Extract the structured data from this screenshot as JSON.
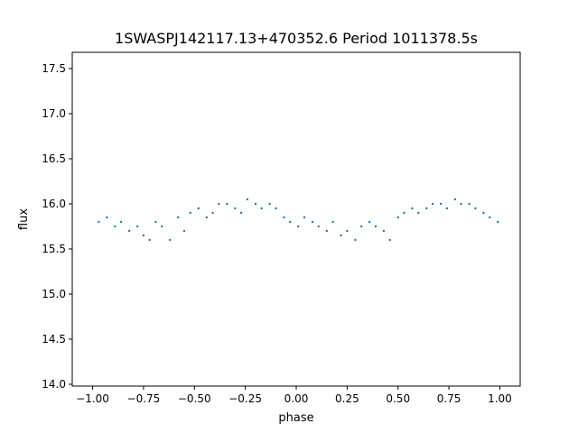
{
  "chart_data": {
    "type": "scatter",
    "title": "1SWASPJ142117.13+470352.6 Period 1011378.5s",
    "xlabel": "phase",
    "ylabel": "flux",
    "xlim": [
      -1.1,
      1.1
    ],
    "ylim": [
      13.98,
      17.68
    ],
    "xticks": [
      -1.0,
      -0.75,
      -0.5,
      -0.25,
      0.0,
      0.25,
      0.5,
      0.75,
      1.0
    ],
    "xtick_labels": [
      "−1.00",
      "−0.75",
      "−0.50",
      "−0.25",
      "0.00",
      "0.25",
      "0.50",
      "0.75",
      "1.00"
    ],
    "yticks": [
      14.0,
      14.5,
      15.0,
      15.5,
      16.0,
      16.5,
      17.0,
      17.5
    ],
    "ytick_labels": [
      "14.0",
      "14.5",
      "15.0",
      "15.5",
      "16.0",
      "16.5",
      "17.0",
      "17.5"
    ],
    "grid": false,
    "legend": "none",
    "series": [
      {
        "color": "#1f77b4",
        "x": [
          -0.97,
          -0.93,
          -0.89,
          -0.86,
          -0.82,
          -0.78,
          -0.75,
          -0.72,
          -0.69,
          -0.66,
          -0.62,
          -0.58,
          -0.55,
          -0.52,
          -0.48,
          -0.44,
          -0.41,
          -0.38,
          -0.34,
          -0.3,
          -0.27,
          -0.24,
          -0.2,
          -0.17,
          -0.13,
          -0.1,
          -0.06,
          -0.03,
          0.01,
          0.04,
          0.08,
          0.11,
          0.15,
          0.18,
          0.22,
          0.25,
          0.29,
          0.32,
          0.36,
          0.39,
          0.43,
          0.46,
          0.5,
          0.53,
          0.57,
          0.6,
          0.64,
          0.67,
          0.71,
          0.74,
          0.78,
          0.81,
          0.85,
          0.88,
          0.92,
          0.95,
          0.99
        ],
        "y": [
          15.8,
          15.85,
          15.75,
          15.8,
          15.7,
          15.75,
          15.65,
          15.6,
          15.8,
          15.75,
          15.6,
          15.85,
          15.7,
          15.9,
          15.95,
          15.85,
          15.9,
          16.0,
          16.0,
          15.95,
          15.9,
          16.05,
          16.0,
          15.95,
          16.0,
          15.95,
          15.85,
          15.8,
          15.75,
          15.85,
          15.8,
          15.75,
          15.7,
          15.8,
          15.65,
          15.7,
          15.6,
          15.75,
          15.8,
          15.75,
          15.7,
          15.6,
          15.85,
          15.9,
          15.95,
          15.9,
          15.95,
          16.0,
          16.0,
          15.95,
          16.05,
          16.0,
          16.0,
          15.95,
          15.9,
          15.85,
          15.8
        ]
      }
    ]
  }
}
